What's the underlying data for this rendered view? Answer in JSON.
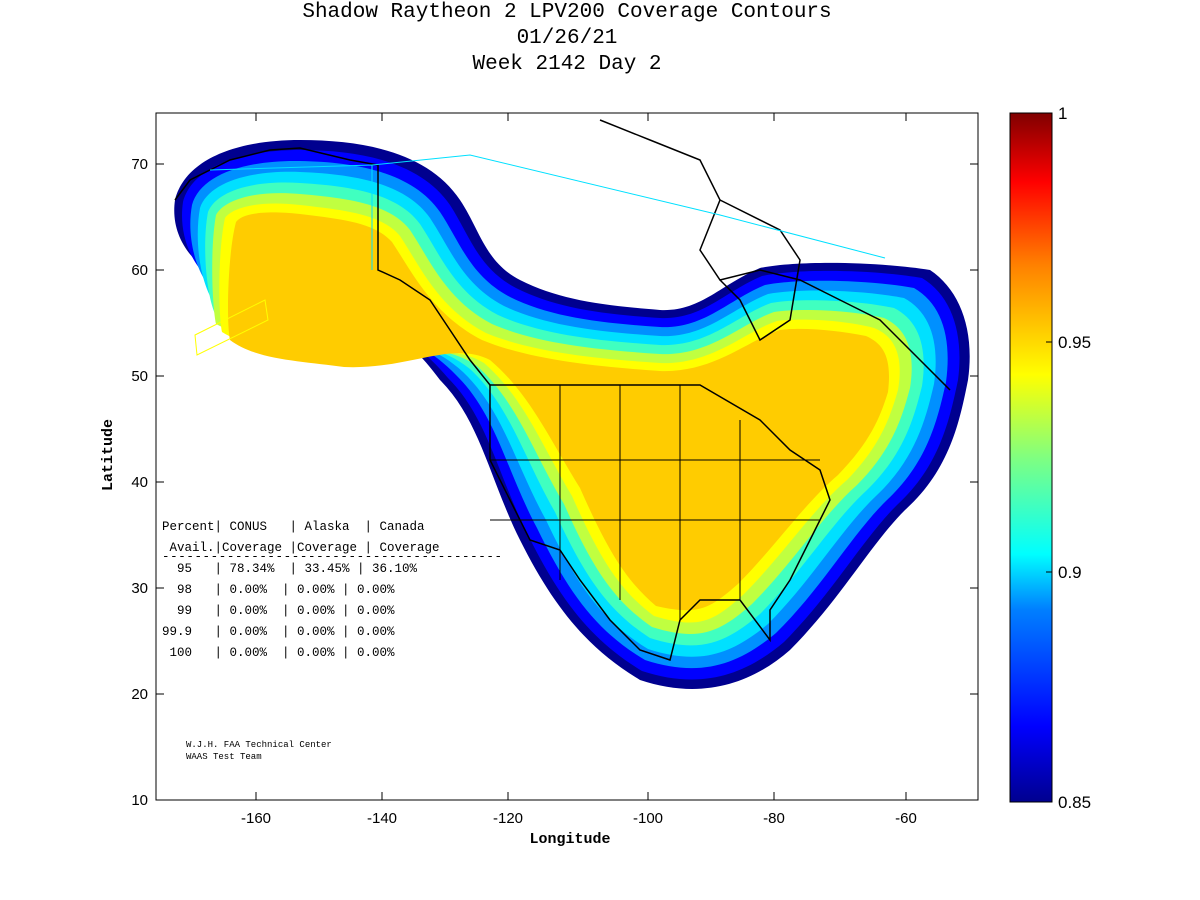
{
  "header": {
    "title_line1": "Shadow Raytheon 2 LPV200 Coverage Contours",
    "title_line2": "01/26/21",
    "title_line3": "Week 2142 Day 2"
  },
  "axes": {
    "xlabel": "Longitude",
    "ylabel": "Latitude",
    "xlim": [
      -175,
      -50
    ],
    "ylim": [
      10,
      75
    ],
    "xticks": [
      "-160",
      "-140",
      "-120",
      "-100",
      "-80",
      "-60"
    ],
    "yticks": [
      "10",
      "20",
      "30",
      "40",
      "50",
      "60",
      "70"
    ]
  },
  "colorbar": {
    "min": 0.85,
    "max": 1,
    "ticks": [
      "0.85",
      "0.9",
      "0.95",
      "1"
    ],
    "colormap": "jet",
    "colors": [
      "#00008f",
      "#0000ff",
      "#00a0ff",
      "#00ffff",
      "#80ff80",
      "#ffff00",
      "#ff8000",
      "#ff0000",
      "#800000"
    ]
  },
  "table": {
    "header_row1": "Percent| CONUS   | Alaska  | Canada",
    "header_row2": " Avail.|Coverage |Coverage | Coverage",
    "separator": "------------------------------------------",
    "rows": [
      "  95   | 78.34%  | 33.45% | 36.10%",
      "  98   | 0.00%  | 0.00% | 0.00%",
      "  99   | 0.00%  | 0.00% | 0.00%",
      "99.9   | 0.00%  | 0.00% | 0.00%",
      " 100   | 0.00%  | 0.00% | 0.00%"
    ]
  },
  "credits": {
    "line1": "W.J.H. FAA Technical Center",
    "line2": "WAAS Test Team"
  },
  "coverage": {
    "value_range": "about 0.93-0.95 in the core, fading to 0.85 at the edge",
    "core_color": "#ffcc00",
    "edge_color": "#00008f"
  }
}
